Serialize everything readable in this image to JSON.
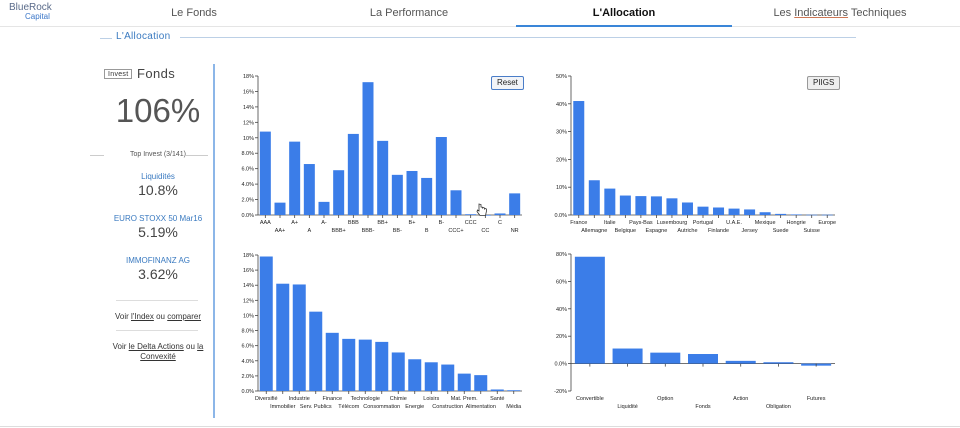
{
  "brand": {
    "line1": "BlueRock",
    "line2": "Capital"
  },
  "nav": {
    "tabs": [
      {
        "label": "Le Fonds"
      },
      {
        "label": "La Performance"
      },
      {
        "label": "L'Allocation"
      },
      {
        "label_pre": "Les ",
        "label_u": "Indicateurs",
        "label_post": " Techniques"
      }
    ]
  },
  "section": {
    "title": "L'Allocation"
  },
  "left": {
    "invest_tag": "Invest",
    "fonds_label": "Fonds",
    "total": "106%",
    "top_invest": "Top Invest (3/141)",
    "items": [
      {
        "name": "Liquidités",
        "value": "10.8%"
      },
      {
        "name": "EURO STOXX 50 Mar16",
        "value": "5.19%"
      },
      {
        "name": "IMMOFINANZ AG",
        "value": "3.62%"
      }
    ],
    "voir1": {
      "pre": "Voir ",
      "link1": "l'Index",
      "mid": " ou ",
      "link2": "comparer"
    },
    "voir2": {
      "pre": "Voir ",
      "link1": "le Delta Actions",
      "mid": " ou ",
      "link2": "la Convexité"
    }
  },
  "buttons": {
    "reset": "Reset",
    "piigs": "PIIGS"
  },
  "colors": {
    "bar": "#3b7de8",
    "accent": "#3a86d8",
    "link": "#3a7ac0"
  },
  "chart_data": [
    {
      "type": "bar",
      "title": "",
      "categories": [
        "AAA",
        "AA+",
        "A+",
        "A",
        "A-",
        "BBB+",
        "BBB",
        "BBB-",
        "BB+",
        "BB-",
        "B+",
        "B",
        "B-",
        "CCC+",
        "CCC",
        "CC",
        "C",
        "NR"
      ],
      "values": [
        10.8,
        1.6,
        9.5,
        6.6,
        1.7,
        5.8,
        10.5,
        17.2,
        9.6,
        5.2,
        5.7,
        4.8,
        10.1,
        3.2,
        0.1,
        0,
        0.2,
        2.8
      ],
      "ylim": [
        0,
        18
      ],
      "yticks": [
        0,
        2,
        4,
        6,
        8,
        10,
        12,
        14,
        16,
        18
      ],
      "ytick_labels": [
        "0.0%",
        "2.0%",
        "4.0%",
        "6.0%",
        "8.0%",
        "10%",
        "12%",
        "14%",
        "16%",
        "18%"
      ]
    },
    {
      "type": "bar",
      "title": "",
      "categories": [
        "France",
        "Allemagne",
        "Italie",
        "Belgique",
        "Pays-Bas",
        "Espagne",
        "Luxembourg",
        "Autriche",
        "Portugal",
        "Finlande",
        "U.A.E.",
        "Jersey",
        "Mexique",
        "Suede",
        "Hongrie",
        "Suisse",
        "Europe"
      ],
      "values": [
        41,
        12.5,
        9.5,
        7,
        6.8,
        6.7,
        6,
        4.5,
        3,
        2.7,
        2.3,
        2,
        1,
        0.4,
        0.2,
        0.1,
        0.1
      ],
      "ylim": [
        0,
        50
      ],
      "yticks": [
        0,
        10,
        20,
        30,
        40,
        50
      ],
      "ytick_labels": [
        "0.0%",
        "10%",
        "20%",
        "30%",
        "40%",
        "50%"
      ]
    },
    {
      "type": "bar",
      "title": "",
      "categories": [
        "Diversifié",
        "Immobilier",
        "Industrie",
        "Serv. Publics",
        "Finance",
        "Télécom",
        "Technologie",
        "Consommation",
        "Chimie",
        "Energie",
        "Loisirs",
        "Construction",
        "Mat. Prem.",
        "Alimentation",
        "Santé",
        "Média"
      ],
      "values": [
        17.8,
        14.2,
        14.1,
        10.5,
        7.7,
        6.9,
        6.8,
        6.5,
        5.1,
        4.2,
        3.8,
        3.5,
        2.3,
        2.1,
        0.2,
        0.1
      ],
      "ylim": [
        0,
        18
      ],
      "yticks": [
        0,
        2,
        4,
        6,
        8,
        10,
        12,
        14,
        16,
        18
      ],
      "ytick_labels": [
        "0.0%",
        "2.0%",
        "4.0%",
        "6.0%",
        "8.0%",
        "10%",
        "12%",
        "14%",
        "16%",
        "18%"
      ]
    },
    {
      "type": "bar",
      "title": "",
      "categories": [
        "Convertible",
        "Liquidité",
        "Option",
        "Fonds",
        "Action",
        "Obligation",
        "Futures"
      ],
      "values": [
        78,
        11,
        8,
        7,
        2,
        1,
        -1.5
      ],
      "ylim": [
        -20,
        80
      ],
      "yticks": [
        -20,
        0,
        20,
        40,
        60,
        80
      ],
      "ytick_labels": [
        "-20%",
        "0.0%",
        "20%",
        "40%",
        "60%",
        "80%"
      ]
    }
  ]
}
